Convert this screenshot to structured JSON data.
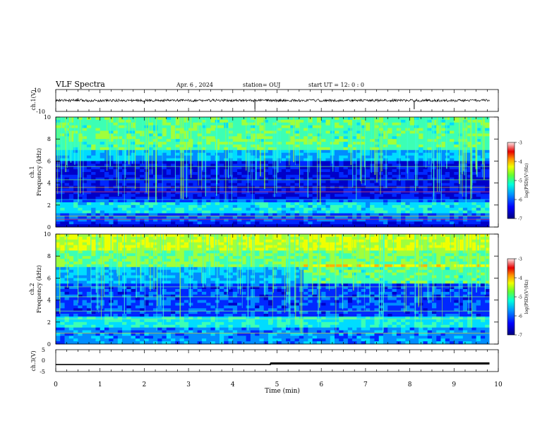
{
  "header": {
    "title": "VLF Spectra",
    "date": "Apr. 6  , 2024",
    "station": "station= OUJ",
    "start": "start  UT =   12: 0  : 0"
  },
  "colorbar_1": {
    "ticks": [
      "-3",
      "-4",
      "-5",
      "-6",
      "-7"
    ],
    "label": "log(PSD)(V²/Hz)"
  },
  "colorbar_2": {
    "ticks": [
      "-3",
      "-4",
      "-5",
      "-6",
      "-7"
    ],
    "label": "log(PSD)(V²/Hz)"
  },
  "colors": {
    "cmap": [
      "#00006e",
      "#0000c8",
      "#0028ff",
      "#008cff",
      "#00dcff",
      "#3cffb4",
      "#a0ff3c",
      "#f0ff00",
      "#ffb400",
      "#ff4600",
      "#e60000",
      "#ffd6d6"
    ],
    "line_strong": "#ff3c3c"
  },
  "chart_data": [
    {
      "type": "line",
      "panel": "ch1-signal",
      "ylabel": "ch.1(V)",
      "ylim": [
        -10,
        10
      ],
      "y_ticks": [
        "10",
        "-10"
      ],
      "baseline": 0,
      "spikes": [
        {
          "x": 4.5,
          "y": -8
        },
        {
          "x": 8.1,
          "y": -8
        },
        {
          "x": 0.5,
          "y": 2
        },
        {
          "x": 2.0,
          "y": -3
        }
      ]
    },
    {
      "type": "heatmap",
      "panel": "ch1-spectrogram",
      "ylabel": "ch.1\nFrequency (kHz)",
      "ylim": [
        0,
        10
      ],
      "y_ticks": [
        "10",
        "8",
        "6",
        "4",
        "2",
        "0"
      ],
      "xlim": [
        0,
        9.8
      ],
      "color_scale": "log(PSD)(V²/Hz)",
      "zlim": [
        -7,
        -3
      ]
    },
    {
      "type": "heatmap",
      "panel": "ch2-spectrogram",
      "ylabel": "ch.2\nFrequency (kHz)",
      "ylim": [
        0,
        10
      ],
      "y_ticks": [
        "10",
        "8",
        "6",
        "4",
        "2",
        "0"
      ],
      "xlim": [
        0,
        9.8
      ],
      "color_scale": "log(PSD)(V²/Hz)",
      "zlim": [
        -7,
        -3
      ]
    },
    {
      "type": "line",
      "panel": "ch3-signal",
      "ylabel": "ch.3(V)",
      "ylim": [
        -5,
        5
      ],
      "y_ticks": [
        "5",
        "0",
        "-5"
      ],
      "x": [
        0,
        4.85,
        4.85,
        9.8
      ],
      "y": [
        -1.8,
        -1.8,
        -1.3,
        -1.3
      ]
    }
  ],
  "xaxis": {
    "label": "Time  (min)",
    "ticks": [
      "0",
      "1",
      "2",
      "3",
      "4",
      "5",
      "6",
      "7",
      "8",
      "9",
      "10"
    ],
    "xlim": [
      0,
      10
    ]
  }
}
